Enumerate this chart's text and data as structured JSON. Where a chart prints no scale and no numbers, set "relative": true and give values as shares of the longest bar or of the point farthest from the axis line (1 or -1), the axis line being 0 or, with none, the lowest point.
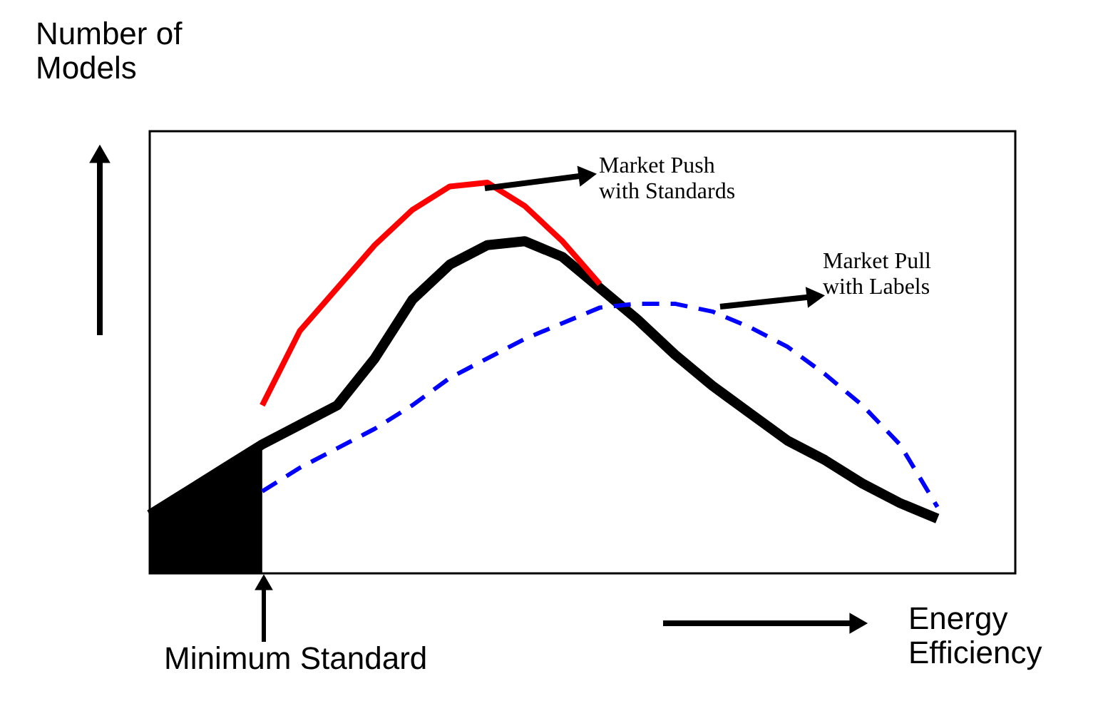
{
  "chart_data": {
    "type": "line",
    "relative": true,
    "tick_labels": false,
    "grid": false,
    "marker": "none",
    "xlabel": "Energy\nEfficiency",
    "ylabel": "Number of\nModels",
    "annotations": [
      "Market Push\nwith Standards",
      "Market Pull\nwith Labels",
      "Minimum Standard"
    ],
    "categories": [
      null,
      null,
      null,
      null,
      null,
      null,
      null,
      null,
      null,
      null,
      null,
      null,
      null,
      null,
      null,
      null,
      null,
      null,
      null,
      null,
      null,
      null
    ],
    "series": [
      {
        "type": "area",
        "color": "#000000",
        "values": [
          0.15,
          0.21,
          0.27,
          0.33,
          null,
          null,
          null,
          null,
          null,
          null,
          null,
          null,
          null,
          null,
          null,
          null,
          null,
          null,
          null,
          null,
          null,
          null
        ]
      },
      {
        "color": "#000000",
        "line_style": "solid",
        "values": [
          0.15,
          0.21,
          0.27,
          0.33,
          0.38,
          0.43,
          0.55,
          0.7,
          0.79,
          0.84,
          0.85,
          0.81,
          0.73,
          0.65,
          0.56,
          0.48,
          0.41,
          0.34,
          0.29,
          0.23,
          0.18,
          0.14
        ]
      },
      {
        "color": "#ff0000",
        "line_style": "solid",
        "values": [
          null,
          null,
          null,
          0.43,
          0.62,
          0.73,
          0.84,
          0.93,
          0.99,
          1.0,
          0.94,
          0.85,
          0.74,
          null,
          null,
          null,
          null,
          null,
          null,
          null,
          null,
          null
        ]
      },
      {
        "color": "#0000ff",
        "line_style": "dashed",
        "values": [
          null,
          null,
          null,
          0.21,
          0.27,
          0.32,
          0.37,
          0.43,
          0.5,
          0.55,
          0.6,
          0.64,
          0.68,
          0.69,
          0.69,
          0.67,
          0.63,
          0.58,
          0.51,
          0.43,
          0.33,
          0.17
        ]
      }
    ]
  }
}
